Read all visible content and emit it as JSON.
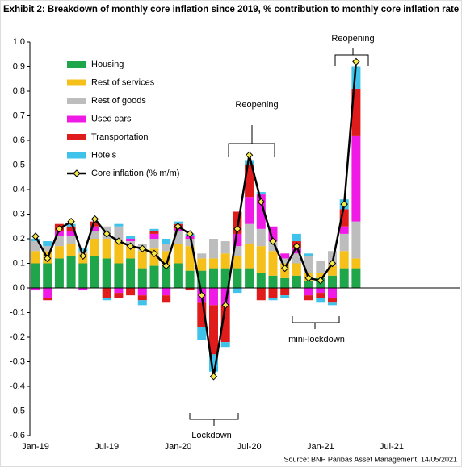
{
  "chart_data": {
    "type": "stacked_bar_line",
    "title": "Exhibit 2: Breakdown of monthly core inflation since 2019, % contribution to monthly core inflation rate",
    "source": "Source: BNP Paribas Asset Management, 14/05/2021",
    "categories": [
      "Jan-19",
      null,
      null,
      null,
      null,
      null,
      "Jul-19",
      null,
      null,
      null,
      null,
      null,
      "Jan-20",
      null,
      null,
      null,
      null,
      null,
      "Jul-20",
      null,
      null,
      null,
      null,
      null,
      "Jan-21",
      null,
      null,
      null,
      null,
      null,
      "Jul-21",
      null,
      null,
      null,
      null,
      null
    ],
    "ylim": [
      -0.6,
      1.0
    ],
    "yticks": [
      {
        "value": 1.0,
        "label": "1.0"
      },
      0.9,
      0.8,
      0.7,
      0.6,
      0.5,
      0.4,
      0.3,
      0.2,
      0.1,
      {
        "value": 0,
        "label": "0.0"
      },
      -0.1,
      -0.2,
      -0.3,
      -0.4,
      -0.5,
      -0.6
    ],
    "series": [
      {
        "name": "Housing",
        "color": "#1fa64a",
        "values": [
          0.1,
          0.1,
          0.12,
          0.13,
          0.1,
          0.13,
          0.12,
          0.1,
          0.12,
          0.08,
          0.09,
          0.09,
          0.1,
          0.07,
          0.07,
          0.08,
          0.08,
          0.08,
          0.08,
          0.06,
          0.05,
          0.04,
          0.05,
          0.03,
          0.04,
          0.05,
          0.08,
          0.08,
          null,
          null,
          null,
          null,
          null,
          null,
          null,
          null
        ]
      },
      {
        "name": "Rest of services",
        "color": "#f5c01a",
        "values": [
          0.05,
          0.05,
          0.05,
          0.05,
          0.04,
          0.07,
          0.08,
          0.09,
          0.05,
          0.07,
          0.07,
          0.06,
          0.08,
          0.1,
          0.05,
          0.04,
          0.06,
          0.05,
          0.1,
          0.11,
          0.1,
          0.06,
          0.05,
          0.03,
          0.02,
          0.04,
          0.07,
          0.04,
          null,
          null,
          null,
          null,
          null,
          null,
          null,
          null
        ]
      },
      {
        "name": "Rest of goods",
        "color": "#bdbdbd",
        "values": [
          0.04,
          0.02,
          0.04,
          0.03,
          0.01,
          0.03,
          0.05,
          0.06,
          0.02,
          0.03,
          0.04,
          0.03,
          0.05,
          0.03,
          0.02,
          0.08,
          0.05,
          0.04,
          0.08,
          0.07,
          0.04,
          0.02,
          0.04,
          0.07,
          0.05,
          0.06,
          0.07,
          0.15,
          null,
          null,
          null,
          null,
          null,
          null,
          null,
          null
        ]
      },
      {
        "name": "Used cars",
        "color": "#f01ae6",
        "values": [
          -0.01,
          -0.04,
          0.02,
          0.02,
          -0.01,
          0.02,
          0.0,
          -0.02,
          0.01,
          -0.03,
          0.02,
          -0.03,
          0.01,
          0.01,
          -0.06,
          -0.07,
          -0.07,
          0.05,
          0.11,
          0.14,
          0.06,
          0.02,
          0.02,
          -0.03,
          -0.02,
          -0.04,
          0.03,
          0.35,
          null,
          null,
          null,
          null,
          null,
          null,
          null,
          null
        ]
      },
      {
        "name": "Transportation",
        "color": "#e01b1b",
        "values": [
          0.0,
          -0.01,
          0.03,
          0.02,
          0.0,
          0.02,
          -0.04,
          -0.02,
          -0.03,
          -0.02,
          0.01,
          -0.03,
          0.02,
          -0.01,
          -0.1,
          -0.2,
          -0.15,
          0.09,
          0.13,
          -0.05,
          -0.04,
          -0.03,
          0.03,
          -0.02,
          -0.02,
          -0.02,
          0.07,
          0.19,
          null,
          null,
          null,
          null,
          null,
          null,
          null,
          null
        ]
      },
      {
        "name": "Hotels",
        "color": "#3fc3ea",
        "values": [
          0.01,
          0.02,
          0.0,
          0.01,
          0.01,
          0.0,
          -0.01,
          0.01,
          0.01,
          -0.02,
          0.01,
          0.02,
          0.01,
          0.01,
          -0.05,
          -0.07,
          -0.02,
          -0.02,
          0.02,
          0.01,
          -0.01,
          -0.01,
          0.03,
          0.01,
          -0.02,
          -0.01,
          0.04,
          0.09,
          null,
          null,
          null,
          null,
          null,
          null,
          null,
          null
        ]
      }
    ],
    "line": {
      "name": "Core inflation (% m/m)",
      "color": "#000000",
      "marker_color": "#f5e94a",
      "values": [
        0.21,
        0.12,
        0.24,
        0.27,
        0.13,
        0.28,
        0.22,
        0.19,
        0.17,
        0.16,
        0.14,
        0.09,
        0.25,
        0.22,
        -0.03,
        -0.36,
        -0.07,
        0.24,
        0.54,
        0.35,
        0.19,
        0.08,
        0.17,
        0.04,
        0.03,
        0.1,
        0.34,
        0.92,
        null,
        null,
        null,
        null,
        null,
        null,
        null,
        null
      ]
    },
    "annotations": [
      "Reopening",
      "Lockdown",
      "mini-lockdown",
      "Reopening"
    ]
  }
}
